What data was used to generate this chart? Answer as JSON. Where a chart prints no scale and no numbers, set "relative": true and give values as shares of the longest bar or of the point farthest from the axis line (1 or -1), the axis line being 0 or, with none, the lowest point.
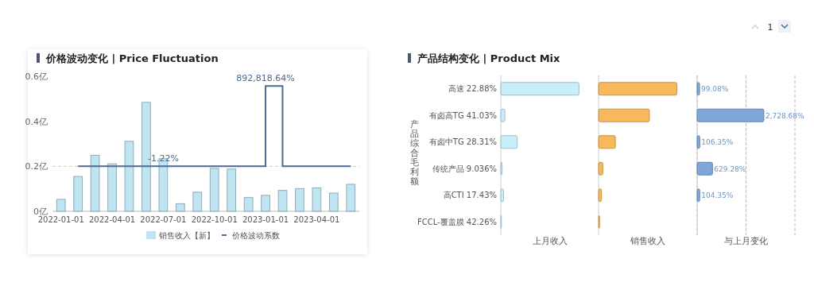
{
  "chart_data": [
    {
      "type": "bar",
      "title": "价格波动变化 | Price Fluctuation",
      "categories": [
        "2022-01-01",
        null,
        null,
        "2022-04-01",
        null,
        null,
        "2022-07-01",
        null,
        null,
        "2022-10-01",
        null,
        null,
        "2023-01-01",
        null,
        null,
        "2023-04-01",
        null,
        null
      ],
      "ylim": [
        0,
        0.6
      ],
      "yticks": [
        {
          "value": 0,
          "label": "0亿"
        },
        {
          "value": 0.2,
          "label": "0.2亿"
        },
        {
          "value": 0.4,
          "label": "0.4亿"
        },
        {
          "value": 0.6,
          "label": "0.6亿"
        }
      ],
      "series": [
        {
          "name": "销售收入【新】",
          "type": "bar",
          "color": "#bfe4f2",
          "values": [
            0.053,
            0.155,
            0.249,
            0.211,
            0.311,
            0.484,
            0.234,
            0.034,
            0.085,
            0.191,
            0.188,
            0.061,
            0.071,
            0.093,
            0.101,
            0.104,
            0.081,
            0.12
          ]
        },
        {
          "name": "价格波动系数",
          "type": "step",
          "axis": "y2",
          "color": "#4d6a92",
          "values": [
            null,
            0,
            0,
            0,
            0,
            0,
            -1.22,
            0,
            0,
            0,
            0,
            0,
            892818.64,
            0,
            0,
            0,
            0,
            0
          ],
          "value_labels": [
            null,
            null,
            null,
            null,
            null,
            null,
            "-1.22%",
            null,
            null,
            null,
            null,
            null,
            "892,818.64%",
            null,
            null,
            null,
            null,
            null
          ]
        }
      ],
      "ref_lines": [
        {
          "axis": "y",
          "value": 0.2,
          "color": "#f5c57e",
          "line_style": "dashed"
        }
      ],
      "legend": "bottom"
    },
    {
      "type": "bar",
      "orientation": "horizontal",
      "title": "产品结构变化 | Product Mix",
      "ylabel": "产品综合毛利额",
      "xlabel": "上月收入",
      "categories": [
        "高速 22.88%",
        "有卤高TG 41.03%",
        "有卤中TG 28.31%",
        "传统产品 9.036%",
        "高CTI 17.43%",
        "FCCL-覆盖膜 42.26%"
      ],
      "relative": true,
      "values": [
        1,
        0.052,
        0.21,
        0.017,
        0.035,
        0
      ],
      "color": "#c8eefa"
    },
    {
      "type": "bar",
      "orientation": "horizontal",
      "xlabel": "销售收入",
      "categories": [
        null,
        null,
        null,
        null,
        null,
        null
      ],
      "relative": true,
      "values": [
        1,
        0.65,
        0.215,
        0.054,
        0.037,
        0.013
      ],
      "color": "#f7b95c"
    },
    {
      "type": "bar",
      "orientation": "horizontal",
      "xlabel": "与上月变化",
      "categories": [
        null,
        null,
        null,
        null,
        null,
        null
      ],
      "xlim": [
        0,
        4000
      ],
      "xticks": [
        {
          "value": 0,
          "label": null
        },
        {
          "value": 2000,
          "label": null
        },
        {
          "value": 4000,
          "label": null
        }
      ],
      "values": [
        99.08,
        2728.68,
        106.35,
        629.28,
        104.35,
        null
      ],
      "value_labels": [
        "99.08%",
        "2,728.68%",
        "106.35%",
        "629.28%",
        "104.35%",
        null
      ],
      "color": "#7ea7d8",
      "grid": "x"
    },
    {
      "type": "other",
      "annotations": [
        "1"
      ]
    }
  ]
}
